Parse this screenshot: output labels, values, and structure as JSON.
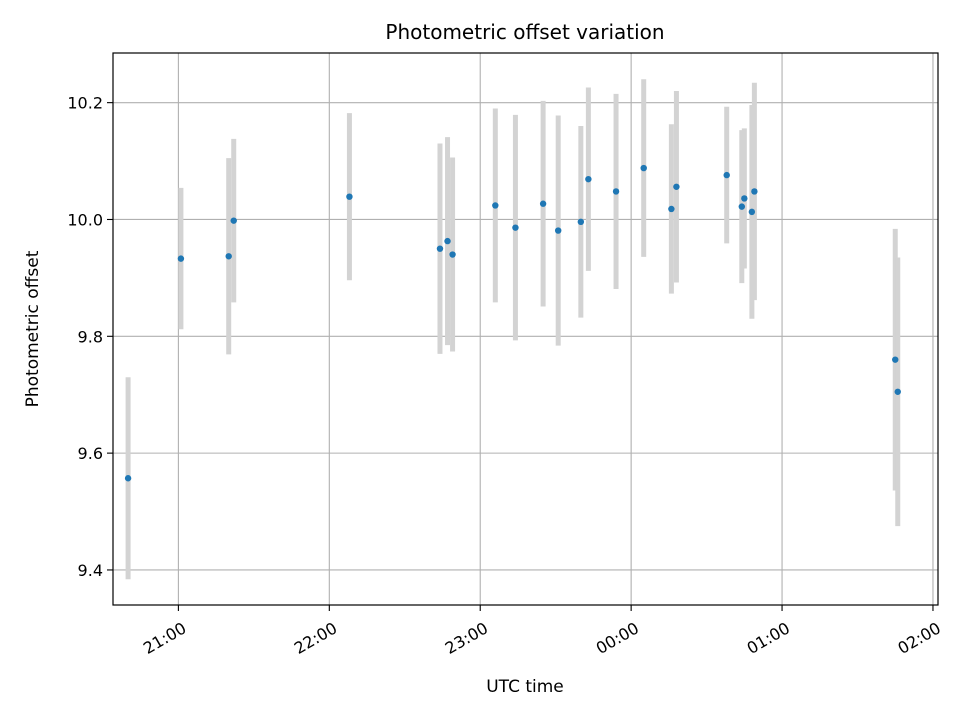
{
  "chart_data": {
    "type": "scatter",
    "title": "Photometric offset variation",
    "xlabel": "UTC time",
    "ylabel": "Photometric offset",
    "x_tick_labels": [
      "21:00",
      "22:00",
      "23:00",
      "00:00",
      "01:00",
      "02:00"
    ],
    "y_tick_labels": [
      "9.4",
      "9.6",
      "9.8",
      "10.0",
      "10.2"
    ],
    "y_ticks": [
      9.4,
      9.6,
      9.8,
      10.0,
      10.2
    ],
    "ylim": [
      9.34,
      10.285
    ],
    "xlim": [
      "20:34",
      "02:02"
    ],
    "grid": true,
    "colors": {
      "point": "#1f77b4",
      "errorbar": "#d3d3d3",
      "grid": "#b0b0b0"
    },
    "points": [
      {
        "x": "20:40",
        "y": 9.557,
        "yerr": 0.173
      },
      {
        "x": "21:01",
        "y": 9.933,
        "yerr": 0.121
      },
      {
        "x": "21:20",
        "y": 9.937,
        "yerr": 0.168
      },
      {
        "x": "21:22",
        "y": 9.998,
        "yerr": 0.14
      },
      {
        "x": "22:08",
        "y": 10.039,
        "yerr": 0.143
      },
      {
        "x": "22:44",
        "y": 9.95,
        "yerr": 0.18
      },
      {
        "x": "22:47",
        "y": 9.963,
        "yerr": 0.178
      },
      {
        "x": "22:49",
        "y": 9.94,
        "yerr": 0.166
      },
      {
        "x": "23:06",
        "y": 10.024,
        "yerr": 0.166
      },
      {
        "x": "23:14",
        "y": 9.986,
        "yerr": 0.193
      },
      {
        "x": "23:25",
        "y": 10.027,
        "yerr": 0.176
      },
      {
        "x": "23:31",
        "y": 9.981,
        "yerr": 0.197
      },
      {
        "x": "23:40",
        "y": 9.996,
        "yerr": 0.164
      },
      {
        "x": "23:43",
        "y": 10.069,
        "yerr": 0.157
      },
      {
        "x": "23:54",
        "y": 10.048,
        "yerr": 0.167
      },
      {
        "x": "00:05",
        "y": 10.088,
        "yerr": 0.152
      },
      {
        "x": "00:16",
        "y": 10.018,
        "yerr": 0.145
      },
      {
        "x": "00:18",
        "y": 10.056,
        "yerr": 0.164
      },
      {
        "x": "00:38",
        "y": 10.076,
        "yerr": 0.117
      },
      {
        "x": "00:44",
        "y": 10.022,
        "yerr": 0.131
      },
      {
        "x": "00:45",
        "y": 10.036,
        "yerr": 0.12
      },
      {
        "x": "00:48",
        "y": 10.013,
        "yerr": 0.183
      },
      {
        "x": "00:49",
        "y": 10.048,
        "yerr": 0.186
      },
      {
        "x": "01:45",
        "y": 9.76,
        "yerr": 0.224
      },
      {
        "x": "01:46",
        "y": 9.705,
        "yerr": 0.23
      }
    ]
  }
}
